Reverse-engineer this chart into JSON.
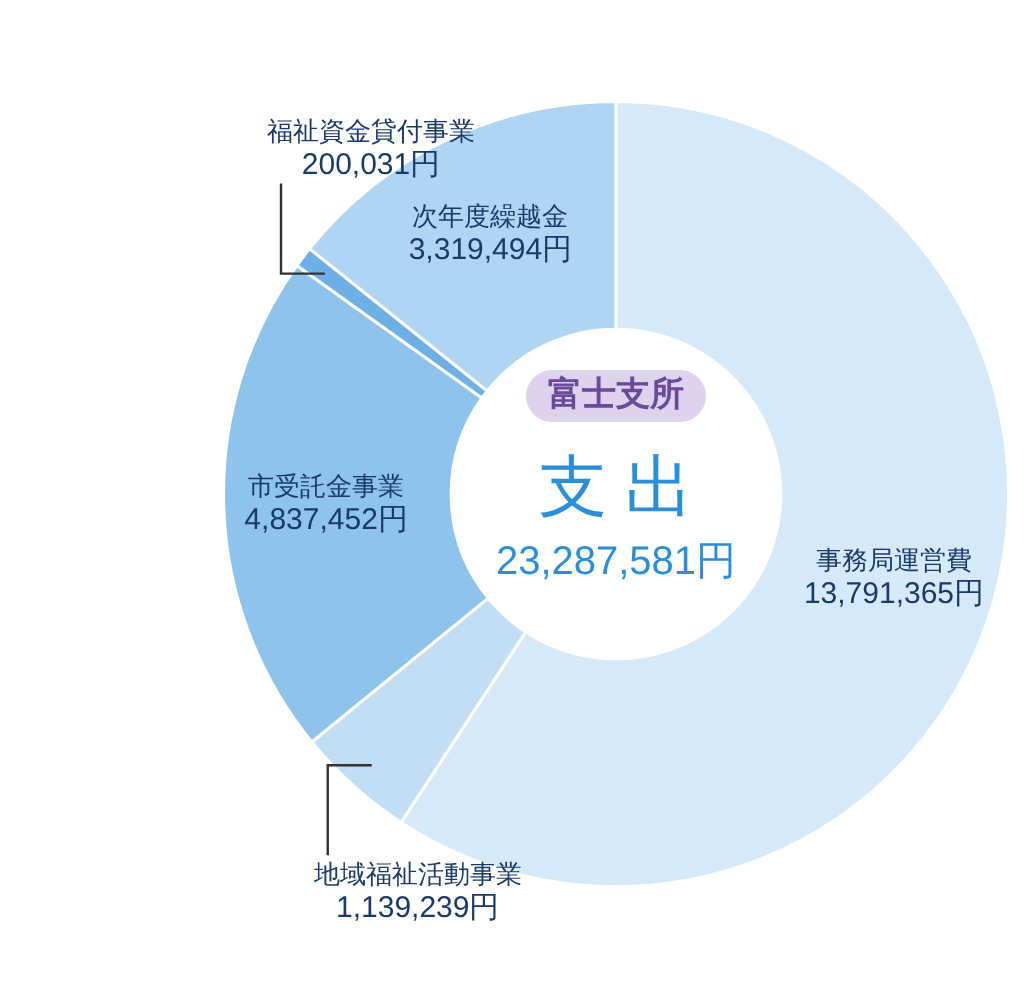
{
  "chart_data": {
    "type": "donut",
    "title": "富士支所",
    "subtitle": "支 出",
    "categories": [
      "事務局運営費",
      "地域福祉活動事業",
      "市受託金事業",
      "福祉資金貸付事業",
      "次年度繰越金"
    ],
    "values": [
      13791365,
      1139239,
      4837452,
      200031,
      3319494
    ],
    "value_labels": [
      "13,791,365円",
      "1,139,239円",
      "4,837,452円",
      "200,031円",
      "3,319,494円"
    ],
    "colors": [
      "#d6e9f9",
      "#c2def5",
      "#8ec3ec",
      "#6eb0e6",
      "#b0d5f3"
    ],
    "annotations": [
      "23,287,581円"
    ],
    "legend": false
  }
}
